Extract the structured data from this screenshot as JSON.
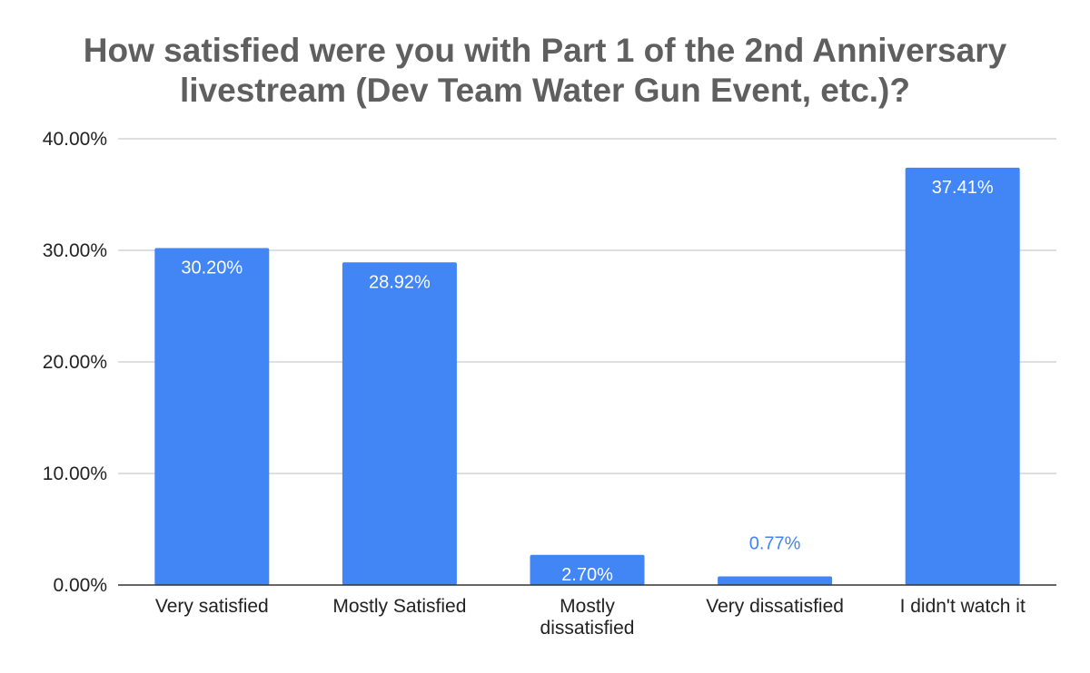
{
  "chart_data": {
    "type": "bar",
    "title": "How satisfied were you with Part 1 of the 2nd Anniversary livestream (Dev Team Water Gun Event, etc.)?",
    "categories": [
      "Very satisfied",
      "Mostly Satisfied",
      "Mostly dissatisfied",
      "Very dissatisfied",
      "I didn't watch it"
    ],
    "values": [
      30.2,
      28.92,
      2.7,
      0.77,
      37.41
    ],
    "data_labels": [
      "30.20%",
      "28.92%",
      "2.70%",
      "0.77%",
      "37.41%"
    ],
    "xlabel": "",
    "ylabel": "",
    "ylim": [
      0,
      40
    ],
    "yticks": [
      0,
      10,
      20,
      30,
      40
    ],
    "ytick_labels": [
      "0.00%",
      "10.00%",
      "20.00%",
      "30.00%",
      "40.00%"
    ],
    "grid": true,
    "legend": "none",
    "colors": {
      "bar": "#4285f4",
      "title": "#5f5f5f",
      "grid": "#cccccc",
      "axis": "#333333",
      "label_inside": "#ffffff",
      "label_outside": "#4285f4"
    }
  }
}
